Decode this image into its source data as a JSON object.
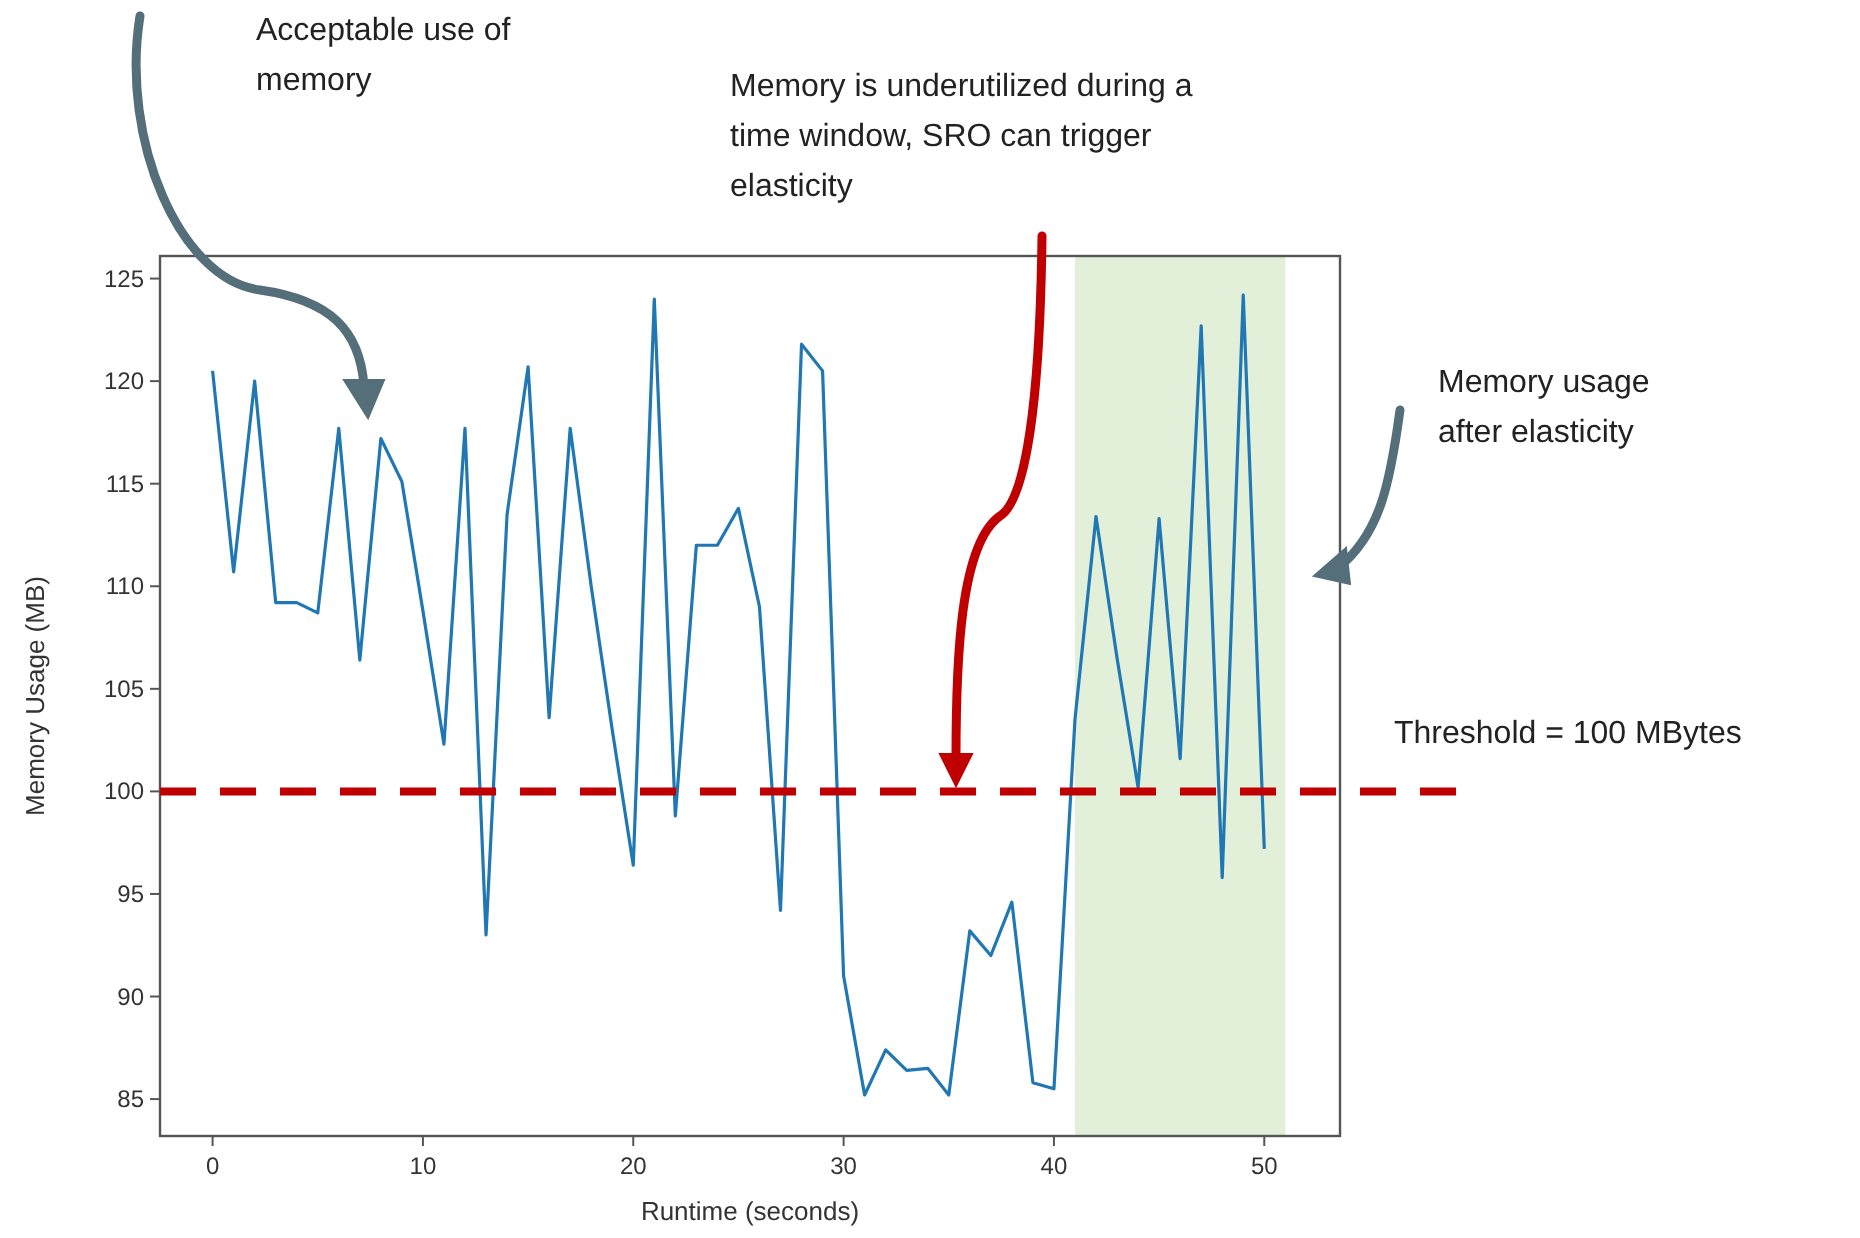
{
  "chart_data": {
    "type": "line",
    "xlabel": "Runtime (seconds)",
    "ylabel": "Memory Usage (MB)",
    "x": [
      0,
      1,
      2,
      3,
      4,
      5,
      6,
      7,
      8,
      9,
      10,
      11,
      12,
      13,
      14,
      15,
      16,
      17,
      18,
      19,
      20,
      21,
      22,
      23,
      24,
      25,
      26,
      27,
      28,
      29,
      30,
      31,
      32,
      33,
      34,
      35,
      36,
      37,
      38,
      39,
      40,
      41,
      42,
      43,
      44,
      45,
      46,
      47,
      48,
      49,
      50
    ],
    "series": [
      {
        "color": "#1f77b4",
        "values": [
          120.5,
          110.7,
          120,
          109.2,
          109.2,
          108.7,
          117.7,
          106.4,
          117.2,
          115.1,
          108.8,
          102.3,
          117.7,
          93,
          113.5,
          120.7,
          103.6,
          117.7,
          110,
          103,
          96.4,
          124,
          98.8,
          112,
          112,
          113.8,
          109,
          94.2,
          121.8,
          120.5,
          91,
          85.2,
          87.4,
          86.4,
          86.5,
          85.2,
          93.2,
          92,
          94.6,
          85.8,
          85.5,
          103.5,
          113.4,
          106.5,
          100.2,
          113.3,
          101.6,
          122.7,
          95.8,
          124.2,
          97.2
        ]
      }
    ],
    "xlim": [
      -2.5,
      53.6
    ],
    "ylim": [
      83.2,
      126.1
    ],
    "xticks": [
      0,
      10,
      20,
      30,
      40,
      50
    ],
    "yticks": [
      85,
      90,
      95,
      100,
      105,
      110,
      115,
      120,
      125
    ],
    "ref_lines": [
      {
        "axis": "y",
        "value": 100,
        "label": "Threshold = 100 MBytes",
        "color": "#c00000",
        "line_style": "dashed"
      }
    ],
    "bands": [
      {
        "axis": "x",
        "from": 41,
        "to": 51,
        "color": "#e2f0d9"
      }
    ],
    "annotations": [
      "Acceptable use of memory",
      "Memory is underutilized during a time window, SRO can trigger elasticity",
      "Memory usage after elasticity"
    ]
  }
}
